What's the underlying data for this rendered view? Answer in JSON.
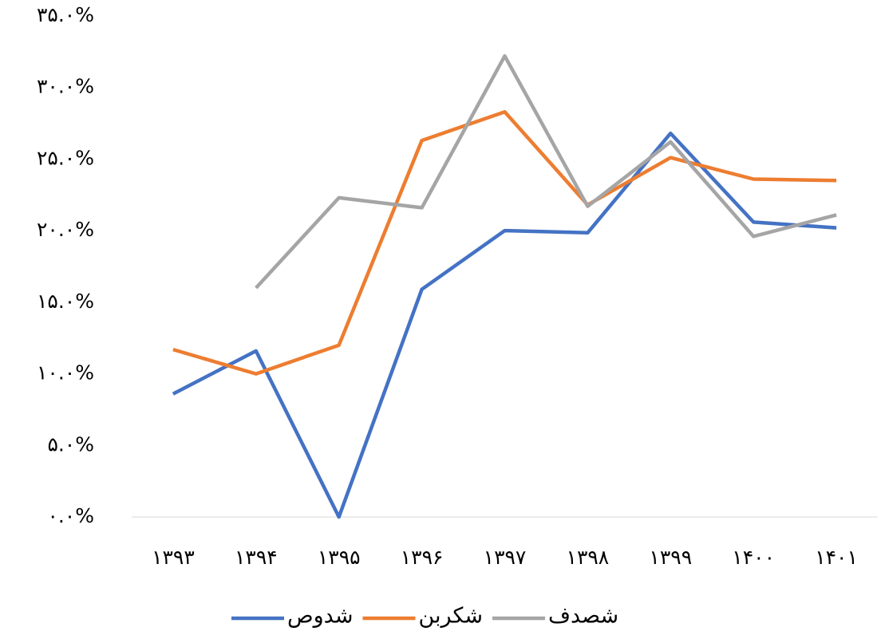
{
  "chart_data": {
    "type": "line",
    "categories": [
      "۱۳۹۳",
      "۱۳۹۴",
      "۱۳۹۵",
      "۱۳۹۶",
      "۱۳۹۷",
      "۱۳۹۸",
      "۱۳۹۹",
      "۱۴۰۰",
      "۱۴۰۱"
    ],
    "series": [
      {
        "name": "شدوص",
        "color": "#4472c4",
        "values": [
          8.6,
          11.6,
          0,
          15.9,
          20.0,
          19.85,
          26.8,
          20.6,
          20.2
        ]
      },
      {
        "name": "شکربن",
        "color": "#ed7d31",
        "values": [
          11.7,
          10.0,
          12.0,
          26.3,
          28.3,
          21.8,
          25.1,
          23.6,
          23.5
        ]
      },
      {
        "name": "شصدف",
        "color": "#a5a5a5",
        "values": [
          null,
          16.0,
          22.3,
          21.6,
          32.2,
          21.7,
          26.2,
          19.6,
          21.1
        ]
      }
    ],
    "ylim": [
      0,
      35
    ],
    "yticks": [
      {
        "value": 0,
        "label": "۰.۰%"
      },
      {
        "value": 5,
        "label": "۵.۰%"
      },
      {
        "value": 10,
        "label": "۱۰.۰%"
      },
      {
        "value": 15,
        "label": "۱۵.۰%"
      },
      {
        "value": 20,
        "label": "۲۰.۰%"
      },
      {
        "value": 25,
        "label": "۲۵.۰%"
      },
      {
        "value": 30,
        "label": "۳۰.۰%"
      },
      {
        "value": 35,
        "label": "۳۵.۰%"
      }
    ],
    "grid": false,
    "legend": "bottom"
  }
}
